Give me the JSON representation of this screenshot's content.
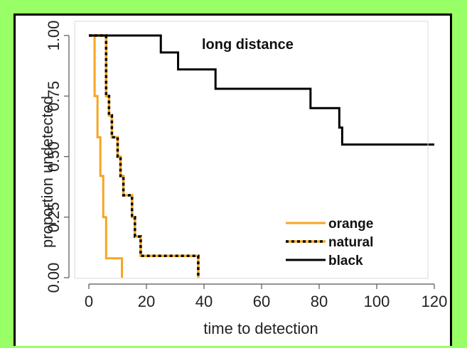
{
  "chart_data": {
    "type": "line",
    "step": true,
    "title": "",
    "annotation": "long distance",
    "xlabel": "time to detection",
    "ylabel": "proportion undetected",
    "xlim": [
      0,
      120
    ],
    "ylim": [
      0,
      1
    ],
    "xticks": [
      0,
      20,
      40,
      60,
      80,
      100,
      120
    ],
    "yticks": [
      "0.00",
      "0.25",
      "0.50",
      "0.75",
      "1.00"
    ],
    "legend_position": "bottom-right",
    "series": [
      {
        "name": "orange",
        "color": "#f5a623",
        "style": "solid",
        "x": [
          0,
          2,
          3,
          4,
          5,
          6,
          11.5
        ],
        "y": [
          1.0,
          0.75,
          0.58,
          0.42,
          0.25,
          0.08,
          0.0
        ]
      },
      {
        "name": "natural",
        "color": "#f5a623",
        "dash_color": "#000000",
        "style": "dashed",
        "x": [
          0,
          6,
          7,
          8,
          10,
          11,
          12,
          13,
          15,
          16,
          18,
          38
        ],
        "y": [
          1.0,
          0.75,
          0.67,
          0.58,
          0.5,
          0.42,
          0.34,
          0.34,
          0.25,
          0.17,
          0.09,
          0.0
        ]
      },
      {
        "name": "black",
        "color": "#000000",
        "style": "solid",
        "x": [
          0,
          25,
          31,
          44,
          77,
          87,
          88,
          120
        ],
        "y": [
          1.0,
          0.93,
          0.86,
          0.78,
          0.7,
          0.62,
          0.55,
          0.55
        ]
      }
    ]
  }
}
